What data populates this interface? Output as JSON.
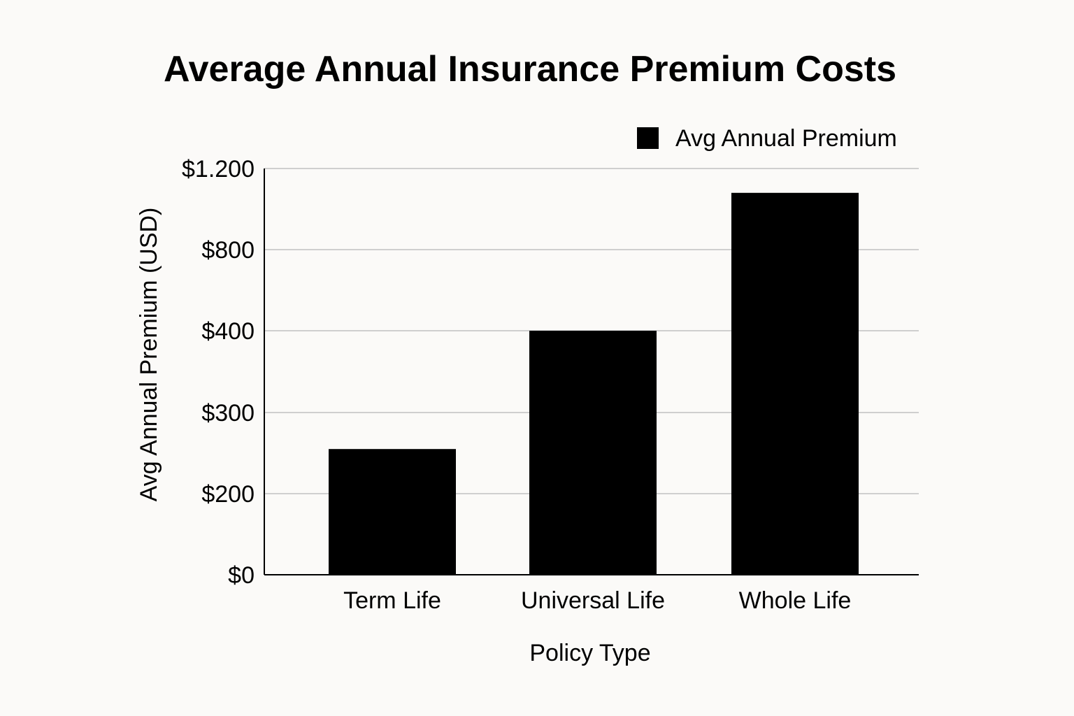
{
  "chart_data": {
    "type": "bar",
    "title": "Average Annual Insurance Premium Costs",
    "xlabel": "Policy Type",
    "ylabel": "Avg Annual Premium (USD)",
    "categories": [
      "Term Life",
      "Universal Life",
      "Whole Life"
    ],
    "series": [
      {
        "name": "Avg Annual Premium",
        "values": [
          255,
          400,
          1080
        ],
        "color": "#000000"
      }
    ],
    "y_ticks": [
      {
        "label": "$0",
        "value": 0
      },
      {
        "label": "$200",
        "value": 200
      },
      {
        "label": "$300",
        "value": 300
      },
      {
        "label": "$400",
        "value": 400
      },
      {
        "label": "$800",
        "value": 800
      },
      {
        "label": "$1.200",
        "value": 1200
      }
    ],
    "ylim": [
      0,
      1200
    ],
    "grid": true,
    "legend_position": "top-right",
    "colors": {
      "background": "#fbfaf8",
      "bar": "#000000",
      "grid": "#cfcfcf",
      "axis": "#000000"
    }
  }
}
